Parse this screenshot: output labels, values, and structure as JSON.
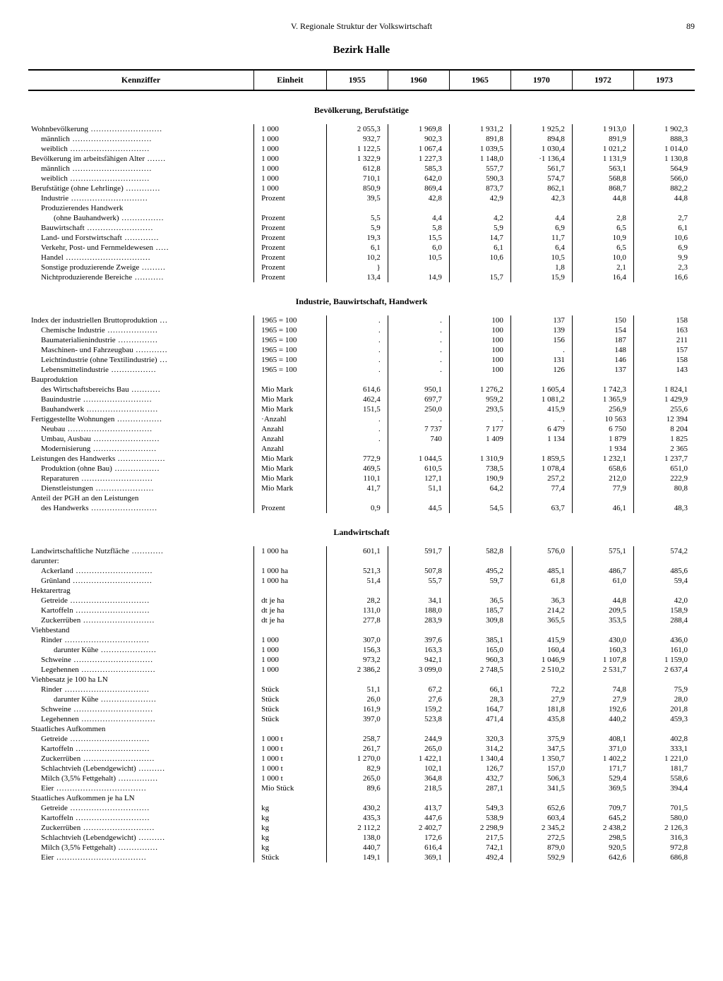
{
  "page": {
    "chapter": "V. Regionale Struktur der Volkswirtschaft",
    "number": "89",
    "region": "Bezirk Halle"
  },
  "columns": {
    "kennziffer": "Kennziffer",
    "einheit": "Einheit",
    "y1955": "1955",
    "y1960": "1960",
    "y1965": "1965",
    "y1970": "1970",
    "y1972": "1972",
    "y1973": "1973"
  },
  "sections": [
    {
      "title": "Bevölkerung, Berufstätige",
      "rows": [
        {
          "label": "Wohnbevölkerung",
          "indent": 0,
          "unit": "1 000",
          "v": [
            "2 055,3",
            "1 969,8",
            "1 931,2",
            "1 925,2",
            "1 913,0",
            "1 902,3"
          ]
        },
        {
          "label": "männlich",
          "indent": 1,
          "unit": "1 000",
          "v": [
            "932,7",
            "902,3",
            "891,8",
            "894,8",
            "891,9",
            "888,3"
          ]
        },
        {
          "label": "weiblich",
          "indent": 1,
          "unit": "1 000",
          "v": [
            "1 122,5",
            "1 067,4",
            "1 039,5",
            "1 030,4",
            "1 021,2",
            "1 014,0"
          ]
        },
        {
          "label": "Bevölkerung im arbeitsfähigen Alter",
          "indent": 0,
          "unit": "1 000",
          "v": [
            "1 322,9",
            "1 227,3",
            "1 148,0",
            "·1 136,4",
            "1 131,9",
            "1 130,8"
          ]
        },
        {
          "label": "männlich",
          "indent": 1,
          "unit": "1 000",
          "v": [
            "612,8",
            "585,3",
            "557,7",
            "561,7",
            "563,1",
            "564,9"
          ]
        },
        {
          "label": "weiblich",
          "indent": 1,
          "unit": "1 000",
          "v": [
            "710,1",
            "642,0",
            "590,3",
            "574,7",
            "568,8",
            "566,0"
          ]
        },
        {
          "label": "Berufstätige (ohne Lehrlinge)",
          "indent": 0,
          "unit": "1 000",
          "v": [
            "850,9",
            "869,4",
            "873,7",
            "862,1",
            "868,7",
            "882,2"
          ]
        },
        {
          "label": "Industrie",
          "indent": 1,
          "unit": "Prozent",
          "v": [
            "39,5",
            "42,8",
            "42,9",
            "42,3",
            "44,8",
            "44,8"
          ]
        },
        {
          "label": "Produzierendes Handwerk",
          "indent": 1,
          "unit": "",
          "v": [
            "",
            "",
            "",
            "",
            "",
            ""
          ]
        },
        {
          "label": "(ohne Bauhandwerk)",
          "indent": 2,
          "unit": "Prozent",
          "v": [
            "5,5",
            "4,4",
            "4,2",
            "4,4",
            "2,8",
            "2,7"
          ]
        },
        {
          "label": "Bauwirtschaft",
          "indent": 1,
          "unit": "Prozent",
          "v": [
            "5,9",
            "5,8",
            "5,9",
            "6,9",
            "6,5",
            "6,1"
          ]
        },
        {
          "label": "Land- und Forstwirtschaft",
          "indent": 1,
          "unit": "Prozent",
          "v": [
            "19,3",
            "15,5",
            "14,7",
            "11,7",
            "10,9",
            "10,6"
          ]
        },
        {
          "label": "Verkehr, Post- und Fernmeldewesen",
          "indent": 1,
          "unit": "Prozent",
          "v": [
            "6,1",
            "6,0",
            "6,1",
            "6,4",
            "6,5",
            "6,9"
          ]
        },
        {
          "label": "Handel",
          "indent": 1,
          "unit": "Prozent",
          "v": [
            "10,2",
            "10,5",
            "10,6",
            "10,5",
            "10,0",
            "9,9"
          ]
        },
        {
          "label": "Sonstige produzierende Zweige",
          "indent": 1,
          "unit": "Prozent",
          "v": [
            "}",
            "",
            "",
            "1,8",
            "2,1",
            "2,3"
          ]
        },
        {
          "label": "Nichtproduzierende Bereiche",
          "indent": 1,
          "unit": "Prozent",
          "v": [
            "13,4",
            "14,9",
            "15,7",
            "15,9",
            "16,4",
            "16,6"
          ]
        }
      ]
    },
    {
      "title": "Industrie, Bauwirtschaft, Handwerk",
      "rows": [
        {
          "label": "Index der industriellen Bruttoproduktion",
          "indent": 0,
          "unit": "1965 = 100",
          "v": [
            ".",
            ".",
            "100",
            "137",
            "150",
            "158"
          ]
        },
        {
          "label": "Chemische Industrie",
          "indent": 1,
          "unit": "1965 = 100",
          "v": [
            ".",
            ".",
            "100",
            "139",
            "154",
            "163"
          ]
        },
        {
          "label": "Baumaterialienindustrie",
          "indent": 1,
          "unit": "1965 = 100",
          "v": [
            ".",
            ".",
            "100",
            "156",
            "187",
            "211"
          ]
        },
        {
          "label": "Maschinen- und Fahrzeugbau",
          "indent": 1,
          "unit": "1965 = 100",
          "v": [
            ".",
            ".",
            "100",
            ".",
            "148",
            "157"
          ]
        },
        {
          "label": "Leichtindustrie (ohne Textilindustrie)",
          "indent": 1,
          "unit": "1965 = 100",
          "v": [
            ".",
            ".",
            "100",
            "131",
            "146",
            "158"
          ]
        },
        {
          "label": "Lebensmittelindustrie",
          "indent": 1,
          "unit": "1965 = 100",
          "v": [
            ".",
            ".",
            "100",
            "126",
            "137",
            "143"
          ]
        },
        {
          "label": "Bauproduktion",
          "indent": 0,
          "unit": "",
          "v": [
            "",
            "",
            "",
            "",
            "",
            ""
          ]
        },
        {
          "label": "des Wirtschaftsbereichs Bau",
          "indent": 1,
          "unit": "Mio Mark",
          "v": [
            "614,6",
            "950,1",
            "1 276,2",
            "1 605,4",
            "1 742,3",
            "1 824,1"
          ]
        },
        {
          "label": "Bauindustrie",
          "indent": 1,
          "unit": "Mio Mark",
          "v": [
            "462,4",
            "697,7",
            "959,2",
            "1 081,2",
            "1 365,9",
            "1 429,9"
          ]
        },
        {
          "label": "Bauhandwerk",
          "indent": 1,
          "unit": "Mio Mark",
          "v": [
            "151,5",
            "250,0",
            "293,5",
            "415,9",
            "256,9",
            "255,6"
          ]
        },
        {
          "label": "Fertiggestellte Wohnungen",
          "indent": 0,
          "unit": "·Anzahl",
          "v": [
            ".",
            ".",
            ".",
            ".",
            "10 563",
            "12 394"
          ]
        },
        {
          "label": "Neubau",
          "indent": 1,
          "unit": "Anzahl",
          "v": [
            ".",
            "7 737",
            "7 177",
            "6 479",
            "6 750",
            "8 204"
          ]
        },
        {
          "label": "Umbau, Ausbau",
          "indent": 1,
          "unit": "Anzahl",
          "v": [
            ".",
            "740",
            "1 409",
            "1 134",
            "1 879",
            "1 825"
          ]
        },
        {
          "label": "Modernisierung",
          "indent": 1,
          "unit": "Anzahl",
          "v": [
            "",
            "",
            "",
            "",
            "1 934",
            "2 365"
          ]
        },
        {
          "label": "Leistungen des Handwerks",
          "indent": 0,
          "unit": "Mio Mark",
          "v": [
            "772,9",
            "1 044,5",
            "1 310,9",
            "1 859,5",
            "1 232,1",
            "1 237,7"
          ]
        },
        {
          "label": "Produktion (ohne Bau)",
          "indent": 1,
          "unit": "Mio Mark",
          "v": [
            "469,5",
            "610,5",
            "738,5",
            "1 078,4",
            "658,6",
            "651,0"
          ]
        },
        {
          "label": "Reparaturen",
          "indent": 1,
          "unit": "Mio Mark",
          "v": [
            "110,1",
            "127,1",
            "190,9",
            "257,2",
            "212,0",
            "222,9"
          ]
        },
        {
          "label": "Dienstleistungen",
          "indent": 1,
          "unit": "Mio Mark",
          "v": [
            "41,7",
            "51,1",
            "64,2",
            "77,4",
            "77,9",
            "80,8"
          ]
        },
        {
          "label": "Anteil der PGH an den Leistungen",
          "indent": 0,
          "unit": "",
          "v": [
            "",
            "",
            "",
            "",
            "",
            ""
          ]
        },
        {
          "label": "des Handwerks",
          "indent": 1,
          "unit": "Prozent",
          "v": [
            "0,9",
            "44,5",
            "54,5",
            "63,7",
            "46,1",
            "48,3"
          ]
        }
      ]
    },
    {
      "title": "Landwirtschaft",
      "rows": [
        {
          "label": "Landwirtschaftliche Nutzfläche",
          "indent": 0,
          "unit": "1 000 ha",
          "v": [
            "601,1",
            "591,7",
            "582,8",
            "576,0",
            "575,1",
            "574,2"
          ]
        },
        {
          "label": "darunter:",
          "indent": 0,
          "unit": "",
          "v": [
            "",
            "",
            "",
            "",
            "",
            ""
          ]
        },
        {
          "label": "Ackerland",
          "indent": 1,
          "unit": "1 000 ha",
          "v": [
            "521,3",
            "507,8",
            "495,2",
            "485,1",
            "486,7",
            "485,6"
          ]
        },
        {
          "label": "Grünland",
          "indent": 1,
          "unit": "1 000 ha",
          "v": [
            "51,4",
            "55,7",
            "59,7",
            "61,8",
            "61,0",
            "59,4"
          ]
        },
        {
          "label": "Hektarertrag",
          "indent": 0,
          "unit": "",
          "v": [
            "",
            "",
            "",
            "",
            "",
            ""
          ]
        },
        {
          "label": "Getreide",
          "indent": 1,
          "unit": "dt je ha",
          "v": [
            "28,2",
            "34,1",
            "36,5",
            "36,3",
            "44,8",
            "42,0"
          ]
        },
        {
          "label": "Kartoffeln",
          "indent": 1,
          "unit": "dt je ha",
          "v": [
            "131,0",
            "188,0",
            "185,7",
            "214,2",
            "209,5",
            "158,9"
          ]
        },
        {
          "label": "Zuckerrüben",
          "indent": 1,
          "unit": "dt je ha",
          "v": [
            "277,8",
            "283,9",
            "309,8",
            "365,5",
            "353,5",
            "288,4"
          ]
        },
        {
          "label": "Viehbestand",
          "indent": 0,
          "unit": "",
          "v": [
            "",
            "",
            "",
            "",
            "",
            ""
          ]
        },
        {
          "label": "Rinder",
          "indent": 1,
          "unit": "1 000",
          "v": [
            "307,0",
            "397,6",
            "385,1",
            "415,9",
            "430,0",
            "436,0"
          ]
        },
        {
          "label": "darunter Kühe",
          "indent": 2,
          "unit": "1 000",
          "v": [
            "156,3",
            "163,3",
            "165,0",
            "160,4",
            "160,3",
            "161,0"
          ]
        },
        {
          "label": "Schweine",
          "indent": 1,
          "unit": "1 000",
          "v": [
            "973,2",
            "942,1",
            "960,3",
            "1 046,9",
            "1 107,8",
            "1 159,0"
          ]
        },
        {
          "label": "Legehennen",
          "indent": 1,
          "unit": "1 000",
          "v": [
            "2 386,2",
            "3 099,0",
            "2 748,5",
            "2 510,2",
            "2 531,7",
            "2 637,4"
          ]
        },
        {
          "label": "Viehbesatz je 100 ha LN",
          "indent": 0,
          "unit": "",
          "v": [
            "",
            "",
            "",
            "",
            "",
            ""
          ]
        },
        {
          "label": "Rinder",
          "indent": 1,
          "unit": "Stück",
          "v": [
            "51,1",
            "67,2",
            "66,1",
            "72,2",
            "74,8",
            "75,9"
          ]
        },
        {
          "label": "darunter Kühe",
          "indent": 2,
          "unit": "Stück",
          "v": [
            "26,0",
            "27,6",
            "28,3",
            "27,9",
            "27,9",
            "28,0"
          ]
        },
        {
          "label": "Schweine",
          "indent": 1,
          "unit": "Stück",
          "v": [
            "161,9",
            "159,2",
            "164,7",
            "181,8",
            "192,6",
            "201,8"
          ]
        },
        {
          "label": "Legehennen",
          "indent": 1,
          "unit": "Stück",
          "v": [
            "397,0",
            "523,8",
            "471,4",
            "435,8",
            "440,2",
            "459,3"
          ]
        },
        {
          "label": "Staatliches Aufkommen",
          "indent": 0,
          "unit": "",
          "v": [
            "",
            "",
            "",
            "",
            "",
            ""
          ]
        },
        {
          "label": "Getreide",
          "indent": 1,
          "unit": "1 000 t",
          "v": [
            "258,7",
            "244,9",
            "320,3",
            "375,9",
            "408,1",
            "402,8"
          ]
        },
        {
          "label": "Kartoffeln",
          "indent": 1,
          "unit": "1 000 t",
          "v": [
            "261,7",
            "265,0",
            "314,2",
            "347,5",
            "371,0",
            "333,1"
          ]
        },
        {
          "label": "Zuckerrüben",
          "indent": 1,
          "unit": "1 000 t",
          "v": [
            "1 270,0",
            "1 422,1",
            "1 340,4",
            "1 350,7",
            "1 402,2",
            "1 221,0"
          ]
        },
        {
          "label": "Schlachtvieh (Lebendgewicht)",
          "indent": 1,
          "unit": "1 000 t",
          "v": [
            "82,9",
            "102,1",
            "126,7",
            "157,0",
            "171,7",
            "181,7"
          ]
        },
        {
          "label": "Milch (3,5% Fettgehalt)",
          "indent": 1,
          "unit": "1 000 t",
          "v": [
            "265,0",
            "364,8",
            "432,7",
            "506,3",
            "529,4",
            "558,6"
          ]
        },
        {
          "label": "Eier",
          "indent": 1,
          "unit": "Mio Stück",
          "v": [
            "89,6",
            "218,5",
            "287,1",
            "341,5",
            "369,5",
            "394,4"
          ]
        },
        {
          "label": "Staatliches Aufkommen je ha LN",
          "indent": 0,
          "unit": "",
          "v": [
            "",
            "",
            "",
            "",
            "",
            ""
          ]
        },
        {
          "label": "Getreide",
          "indent": 1,
          "unit": "kg",
          "v": [
            "430,2",
            "413,7",
            "549,3",
            "652,6",
            "709,7",
            "701,5"
          ]
        },
        {
          "label": "Kartoffeln",
          "indent": 1,
          "unit": "kg",
          "v": [
            "435,3",
            "447,6",
            "538,9",
            "603,4",
            "645,2",
            "580,0"
          ]
        },
        {
          "label": "Zuckerrüben",
          "indent": 1,
          "unit": "kg",
          "v": [
            "2 112,2",
            "2 402,7",
            "2 298,9",
            "2 345,2",
            "2 438,2",
            "2 126,3"
          ]
        },
        {
          "label": "Schlachtvieh (Lebendgewicht)",
          "indent": 1,
          "unit": "kg",
          "v": [
            "138,0",
            "172,6",
            "217,5",
            "272,5",
            "298,5",
            "316,3"
          ]
        },
        {
          "label": "Milch (3,5% Fettgehalt)",
          "indent": 1,
          "unit": "kg",
          "v": [
            "440,7",
            "616,4",
            "742,1",
            "879,0",
            "920,5",
            "972,8"
          ]
        },
        {
          "label": "Eier",
          "indent": 1,
          "unit": "Stück",
          "v": [
            "149,1",
            "369,1",
            "492,4",
            "592,9",
            "642,6",
            "686,8"
          ]
        }
      ]
    }
  ]
}
